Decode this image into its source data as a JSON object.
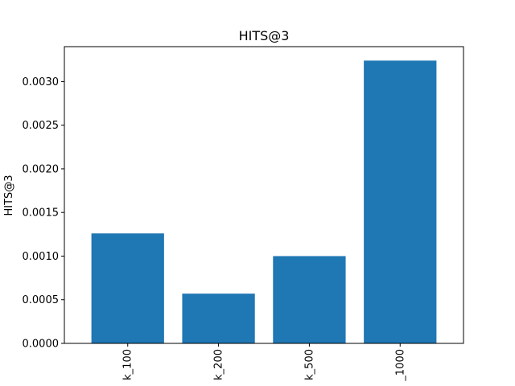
{
  "chart_data": {
    "type": "bar",
    "title": "HITS@3",
    "xlabel": "",
    "ylabel": "HITS@3",
    "categories": [
      "k_100",
      "k_200",
      "k_500",
      "_1000"
    ],
    "values": [
      0.00126,
      0.00057,
      0.001,
      0.00324
    ],
    "ylim": [
      0,
      0.0034
    ],
    "yticks": [
      "0.0000",
      "0.0005",
      "0.0010",
      "0.0015",
      "0.0020",
      "0.0025",
      "0.0030"
    ],
    "bar_color": "#1f77b4",
    "grid": false,
    "legend": "none"
  }
}
